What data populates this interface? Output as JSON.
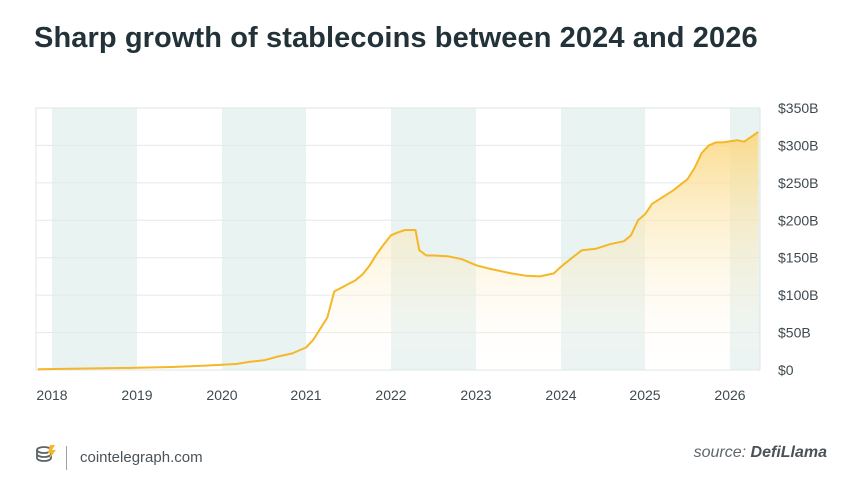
{
  "title": "Sharp growth of stablecoins between 2024 and 2026",
  "brand": {
    "name": "cointelegraph.com",
    "icon": "cointelegraph-logo-icon"
  },
  "source": {
    "prefix": "source:",
    "name": "DefiLlama"
  },
  "colors": {
    "line": "#f5b727",
    "area_top": "#fbd67a",
    "band": "#e9f3f2",
    "grid": "#e4e8ea",
    "axis_text": "#3f4a50"
  },
  "chart_data": {
    "type": "area",
    "title": "Sharp growth of stablecoins between 2024 and 2026",
    "xlabel": "",
    "ylabel": "",
    "x_ticks": [
      "2018",
      "2019",
      "2020",
      "2021",
      "2022",
      "2023",
      "2024",
      "2025",
      "2026"
    ],
    "y_ticks": [
      "$0",
      "$50B",
      "$100B",
      "$150B",
      "$200B",
      "$250B",
      "$300B",
      "$350B"
    ],
    "ylim": [
      0,
      350
    ],
    "y_unit": "$B",
    "y_axis_position": "right",
    "grid": true,
    "legend": "none",
    "series": [
      {
        "values": [
          {
            "x": "2017-11",
            "y": 1
          },
          {
            "x": "2018-06",
            "y": 2
          },
          {
            "x": "2019-01",
            "y": 3
          },
          {
            "x": "2019-06",
            "y": 4
          },
          {
            "x": "2019-11",
            "y": 6
          },
          {
            "x": "2020-01",
            "y": 7
          },
          {
            "x": "2020-03",
            "y": 8
          },
          {
            "x": "2020-05",
            "y": 11
          },
          {
            "x": "2020-07",
            "y": 13
          },
          {
            "x": "2020-09",
            "y": 18
          },
          {
            "x": "2020-11",
            "y": 22
          },
          {
            "x": "2021-01",
            "y": 30
          },
          {
            "x": "2021-02",
            "y": 40
          },
          {
            "x": "2021-03",
            "y": 55
          },
          {
            "x": "2021-04",
            "y": 70
          },
          {
            "x": "2021-05",
            "y": 105
          },
          {
            "x": "2021-06",
            "y": 110
          },
          {
            "x": "2021-07",
            "y": 115
          },
          {
            "x": "2021-08",
            "y": 120
          },
          {
            "x": "2021-09",
            "y": 128
          },
          {
            "x": "2021-10",
            "y": 140
          },
          {
            "x": "2021-11",
            "y": 155
          },
          {
            "x": "2021-12",
            "y": 168
          },
          {
            "x": "2022-01",
            "y": 180
          },
          {
            "x": "2022-02",
            "y": 184
          },
          {
            "x": "2022-03",
            "y": 187
          },
          {
            "x": "2022-04",
            "y": 187
          },
          {
            "x": "2022-04-15",
            "y": 187
          },
          {
            "x": "2022-05",
            "y": 160
          },
          {
            "x": "2022-06",
            "y": 153
          },
          {
            "x": "2022-07",
            "y": 153
          },
          {
            "x": "2022-09",
            "y": 152
          },
          {
            "x": "2022-11",
            "y": 148
          },
          {
            "x": "2023-01",
            "y": 140
          },
          {
            "x": "2023-03",
            "y": 135
          },
          {
            "x": "2023-06",
            "y": 129
          },
          {
            "x": "2023-08",
            "y": 126
          },
          {
            "x": "2023-10",
            "y": 125
          },
          {
            "x": "2023-12",
            "y": 129
          },
          {
            "x": "2024-01",
            "y": 138
          },
          {
            "x": "2024-03",
            "y": 153
          },
          {
            "x": "2024-04",
            "y": 160
          },
          {
            "x": "2024-06",
            "y": 162
          },
          {
            "x": "2024-08",
            "y": 168
          },
          {
            "x": "2024-10",
            "y": 172
          },
          {
            "x": "2024-11",
            "y": 180
          },
          {
            "x": "2024-12",
            "y": 200
          },
          {
            "x": "2025-01",
            "y": 208
          },
          {
            "x": "2025-02",
            "y": 222
          },
          {
            "x": "2025-03",
            "y": 228
          },
          {
            "x": "2025-05",
            "y": 240
          },
          {
            "x": "2025-07",
            "y": 255
          },
          {
            "x": "2025-08",
            "y": 270
          },
          {
            "x": "2025-09",
            "y": 290
          },
          {
            "x": "2025-10",
            "y": 300
          },
          {
            "x": "2025-11",
            "y": 304
          },
          {
            "x": "2025-12",
            "y": 304
          },
          {
            "x": "2026-02",
            "y": 307
          },
          {
            "x": "2026-03",
            "y": 305
          },
          {
            "x": "2026-05",
            "y": 318
          }
        ]
      }
    ]
  }
}
